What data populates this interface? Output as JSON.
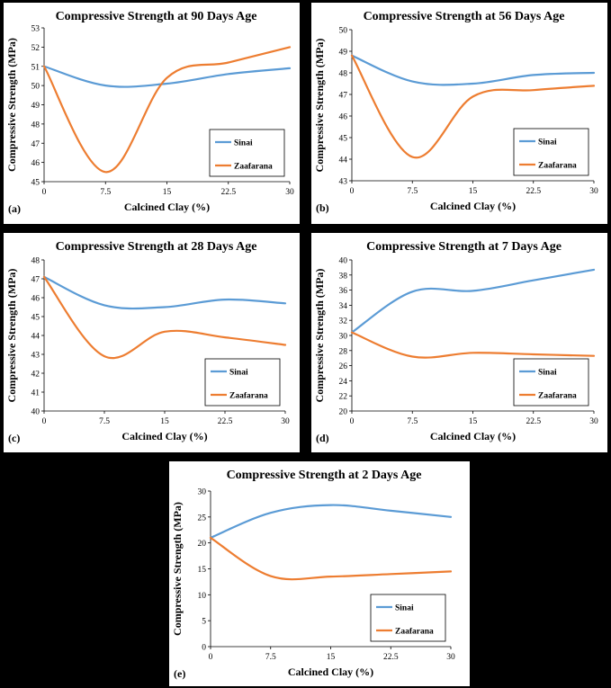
{
  "colors": {
    "sinai": "#5B9BD5",
    "zaafarana": "#ED7D31",
    "background": "#000000",
    "panel": "#FFFFFF"
  },
  "chart_data": [
    {
      "type": "line",
      "panel_label": "(a)",
      "title": "Compressive Strength at 90 Days Age",
      "xlabel": "Calcined Clay (%)",
      "ylabel": "Compressive Strength (MPa)",
      "xlim": [
        0,
        30
      ],
      "ylim": [
        45,
        53
      ],
      "xticks": [
        0,
        7.5,
        15,
        22.5,
        30
      ],
      "xtick_labels": [
        "0",
        "7.5",
        "15",
        "22.5",
        "30"
      ],
      "yticks": [
        45,
        46,
        47,
        48,
        49,
        50,
        51,
        52,
        53
      ],
      "legend": "right",
      "series": [
        {
          "name": "Sinai",
          "x": [
            0,
            7.5,
            15,
            22.5,
            30
          ],
          "values": [
            51.0,
            50.0,
            50.1,
            50.6,
            50.9
          ]
        },
        {
          "name": "Zaafarana",
          "x": [
            0,
            7.5,
            15,
            22.5,
            30
          ],
          "values": [
            51.0,
            45.5,
            50.4,
            51.2,
            52.0
          ]
        }
      ]
    },
    {
      "type": "line",
      "panel_label": "(b)",
      "title": "Compressive Strength at 56 Days Age",
      "xlabel": "Calcined Clay (%)",
      "ylabel": "Compressive Strength (MPa)",
      "xlim": [
        0,
        30
      ],
      "ylim": [
        43,
        50
      ],
      "xticks": [
        0,
        7.5,
        15,
        22.5,
        30
      ],
      "xtick_labels": [
        "0",
        "7.5",
        "15",
        "22.5",
        "30"
      ],
      "yticks": [
        43,
        44,
        45,
        46,
        47,
        48,
        49,
        50
      ],
      "legend": "right",
      "series": [
        {
          "name": "Sinai",
          "x": [
            0,
            7.5,
            15,
            22.5,
            30
          ],
          "values": [
            48.8,
            47.6,
            47.5,
            47.9,
            48.0
          ]
        },
        {
          "name": "Zaafarana",
          "x": [
            0,
            7.5,
            15,
            22.5,
            30
          ],
          "values": [
            48.8,
            44.1,
            46.9,
            47.2,
            47.4
          ]
        }
      ]
    },
    {
      "type": "line",
      "panel_label": "(c)",
      "title": "Compressive Strength at 28 Days Age",
      "xlabel": "Calcined Clay (%)",
      "ylabel": "Compressive Strength (MPa)",
      "xlim": [
        0,
        30
      ],
      "ylim": [
        40,
        48
      ],
      "xticks": [
        0,
        7.5,
        15,
        22.5,
        30
      ],
      "xtick_labels": [
        "0",
        "7.5",
        "15",
        "22.5",
        "30"
      ],
      "yticks": [
        40,
        41,
        42,
        43,
        44,
        45,
        46,
        47,
        48
      ],
      "legend": "right",
      "series": [
        {
          "name": "Sinai",
          "x": [
            0,
            7.5,
            15,
            22.5,
            30
          ],
          "values": [
            47.1,
            45.6,
            45.5,
            45.9,
            45.7
          ]
        },
        {
          "name": "Zaafarana",
          "x": [
            0,
            7.5,
            15,
            22.5,
            30
          ],
          "values": [
            47.1,
            42.9,
            44.2,
            43.9,
            43.5
          ]
        }
      ]
    },
    {
      "type": "line",
      "panel_label": "(d)",
      "title": "Compressive Strength at 7 Days Age",
      "xlabel": "Calcined Clay (%)",
      "ylabel": "Compressive Strength (MPa)",
      "xlim": [
        0,
        30
      ],
      "ylim": [
        20,
        40
      ],
      "xticks": [
        0,
        7.5,
        15,
        22.5,
        30
      ],
      "xtick_labels": [
        "0",
        "7.5",
        "15",
        "22.5",
        "30"
      ],
      "yticks": [
        20,
        22,
        24,
        26,
        28,
        30,
        32,
        34,
        36,
        38,
        40
      ],
      "legend": "right",
      "series": [
        {
          "name": "Sinai",
          "x": [
            0,
            7.5,
            15,
            22.5,
            30
          ],
          "values": [
            30.4,
            35.8,
            35.9,
            37.3,
            38.7
          ]
        },
        {
          "name": "Zaafarana",
          "x": [
            0,
            7.5,
            15,
            22.5,
            30
          ],
          "values": [
            30.4,
            27.2,
            27.7,
            27.5,
            27.3
          ]
        }
      ]
    },
    {
      "type": "line",
      "panel_label": "(e)",
      "title": "Compressive Strength at 2 Days Age",
      "xlabel": "Calcined Clay (%)",
      "ylabel": "Compressive Strength (MPa)",
      "xlim": [
        0,
        30
      ],
      "ylim": [
        0,
        30
      ],
      "xticks": [
        0,
        7.5,
        15,
        22.5,
        30
      ],
      "xtick_labels": [
        "0",
        "7.5",
        "15",
        "22.5",
        "30"
      ],
      "yticks": [
        0,
        5,
        10,
        15,
        20,
        25,
        30
      ],
      "legend": "right",
      "series": [
        {
          "name": "Sinai",
          "x": [
            0,
            7.5,
            15,
            22.5,
            30
          ],
          "values": [
            21.0,
            25.8,
            27.3,
            26.2,
            25.0
          ]
        },
        {
          "name": "Zaafarana",
          "x": [
            0,
            7.5,
            15,
            22.5,
            30
          ],
          "values": [
            21.0,
            13.6,
            13.5,
            14.0,
            14.5
          ]
        }
      ]
    }
  ]
}
